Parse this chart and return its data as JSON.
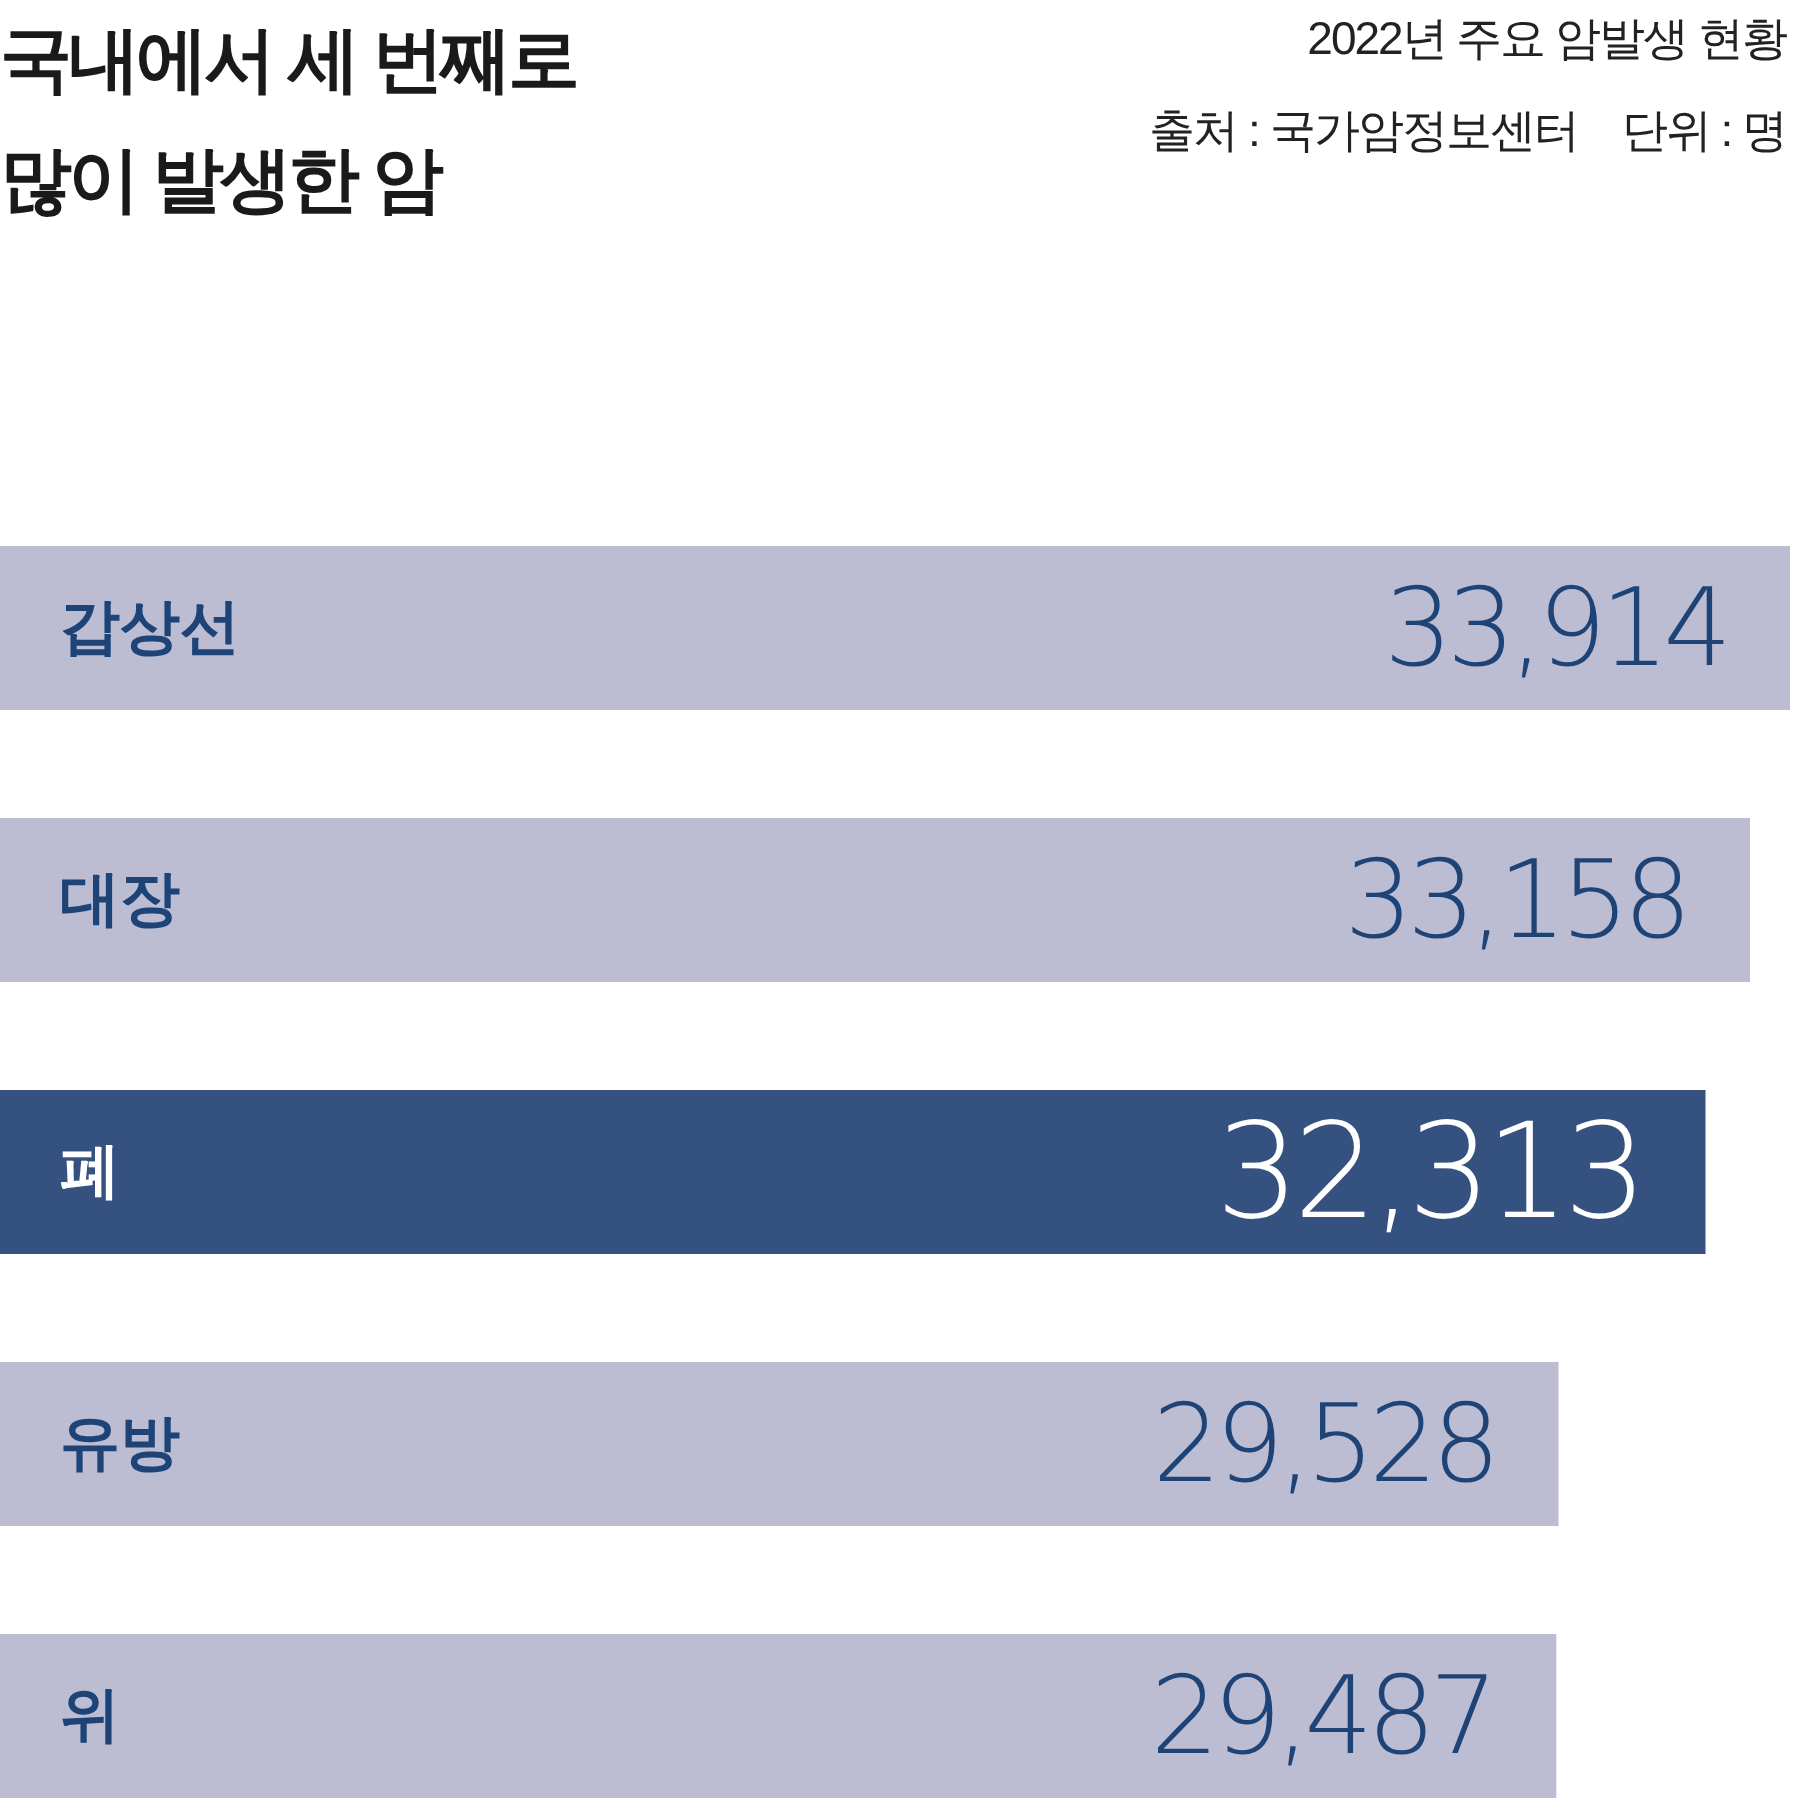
{
  "chart_data": {
    "type": "bar",
    "orientation": "horizontal",
    "title": "국내에서 세 번째로 많이 발생한 암",
    "subtitle": "2022년 주요 암발생 현황",
    "annotations": [
      "출처 : 국가암정보센터",
      "단위 : 명"
    ],
    "categories": [
      "갑상선",
      "대장",
      "폐",
      "유방",
      "위"
    ],
    "values": [
      33914,
      33158,
      32313,
      29528,
      29487
    ],
    "value_labels": [
      "33,914",
      "33,158",
      "32,313",
      "29,528",
      "29,487"
    ],
    "colors": [
      "#bcbdd2",
      "#bcbdd2",
      "#35517f",
      "#bcbdd2",
      "#bcbdd2"
    ]
  }
}
